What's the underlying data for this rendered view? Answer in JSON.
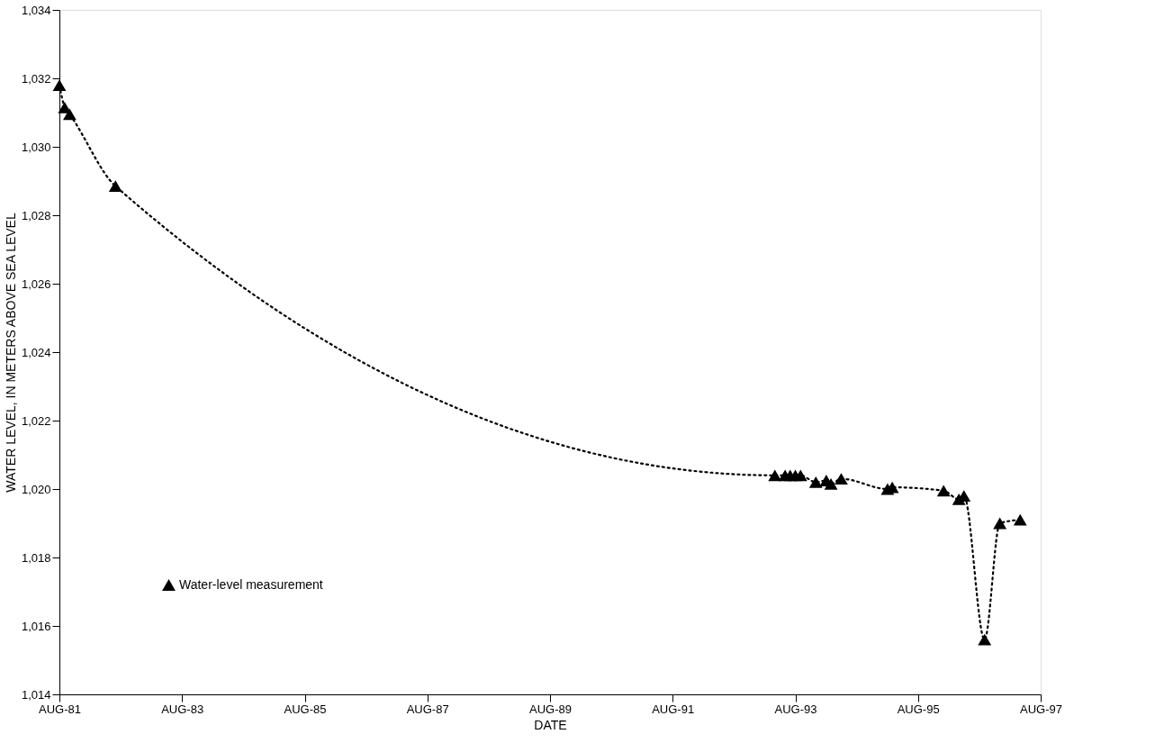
{
  "chart_data": {
    "type": "line",
    "xlabel": "DATE",
    "ylabel": "WATER LEVEL, IN METERS ABOVE SEA LEVEL",
    "x": [
      "1981-08",
      "1981-09",
      "1981-10",
      "1982-07",
      "1993-04",
      "1993-06",
      "1993-07",
      "1993-08",
      "1993-09",
      "1993-12",
      "1994-02",
      "1994-03",
      "1994-05",
      "1995-02",
      "1995-03",
      "1996-01",
      "1996-04",
      "1996-05",
      "1996-09",
      "1996-12",
      "1997-04"
    ],
    "series": [
      {
        "name": "Water-level measurement",
        "color": "#000000",
        "values": [
          1031.8,
          1031.15,
          1030.95,
          1028.85,
          1020.4,
          1020.4,
          1020.4,
          1020.4,
          1020.4,
          1020.2,
          1020.25,
          1020.15,
          1020.3,
          1020.0,
          1020.05,
          1019.95,
          1019.7,
          1019.8,
          1015.6,
          1019.0,
          1019.1
        ]
      }
    ],
    "marker": "triangle",
    "line_style": "dotted",
    "legend": "bottom left",
    "xlim": [
      "1981-08",
      "1997-08"
    ],
    "xticks": [
      {
        "value": "1981-08",
        "label": "AUG-81"
      },
      {
        "value": "1983-08",
        "label": "AUG-83"
      },
      {
        "value": "1985-08",
        "label": "AUG-85"
      },
      {
        "value": "1987-08",
        "label": "AUG-87"
      },
      {
        "value": "1989-08",
        "label": "AUG-89"
      },
      {
        "value": "1991-08",
        "label": "AUG-91"
      },
      {
        "value": "1993-08",
        "label": "AUG-93"
      },
      {
        "value": "1995-08",
        "label": "AUG-95"
      },
      {
        "value": "1997-08",
        "label": "AUG-97"
      }
    ],
    "ylim": [
      1014,
      1034
    ],
    "yticks": [
      {
        "value": 1014,
        "label": "1,014"
      },
      {
        "value": 1016,
        "label": "1,016"
      },
      {
        "value": 1018,
        "label": "1,018"
      },
      {
        "value": 1020,
        "label": "1,020"
      },
      {
        "value": 1022,
        "label": "1,022"
      },
      {
        "value": 1024,
        "label": "1,024"
      },
      {
        "value": 1026,
        "label": "1,026"
      },
      {
        "value": 1028,
        "label": "1,028"
      },
      {
        "value": 1030,
        "label": "1,030"
      },
      {
        "value": 1032,
        "label": "1,032"
      },
      {
        "value": 1034,
        "label": "1,034"
      }
    ],
    "grid": false
  }
}
